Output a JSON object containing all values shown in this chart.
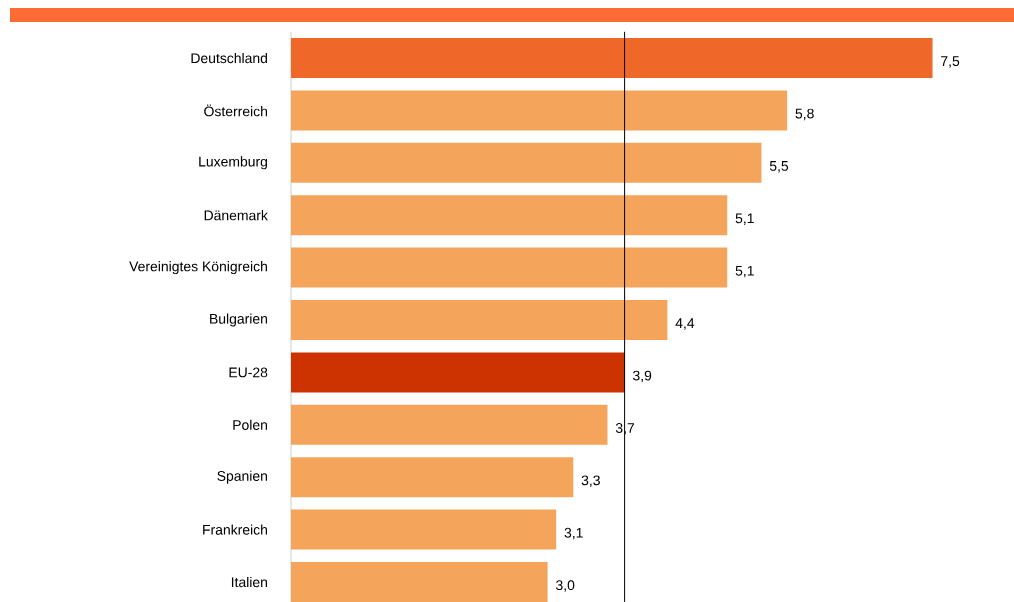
{
  "chart_data": {
    "type": "bar",
    "orientation": "horizontal",
    "categories": [
      "Deutschland",
      "Österreich",
      "Luxemburg",
      "Dänemark",
      "Vereinigtes Königreich",
      "Bulgarien",
      "EU-28",
      "Polen",
      "Spanien",
      "Frankreich",
      "Italien"
    ],
    "values": [
      7.5,
      5.8,
      5.5,
      5.1,
      5.1,
      4.4,
      3.9,
      3.7,
      3.3,
      3.1,
      3.0
    ],
    "value_labels": [
      "7,5",
      "5,8",
      "5,5",
      "5,1",
      "5,1",
      "4,4",
      "3,9",
      "3,7",
      "3,3",
      "3,1",
      "3,0"
    ],
    "colors": [
      "#f0672a",
      "#f4a55b",
      "#f4a55b",
      "#f4a55b",
      "#f4a55b",
      "#f4a55b",
      "#cc3300",
      "#f4a55b",
      "#f4a55b",
      "#f4a55b",
      "#f4a55b"
    ],
    "ref_lines": [
      {
        "axis": "x",
        "value": 3.9,
        "color": "#000000"
      }
    ]
  }
}
